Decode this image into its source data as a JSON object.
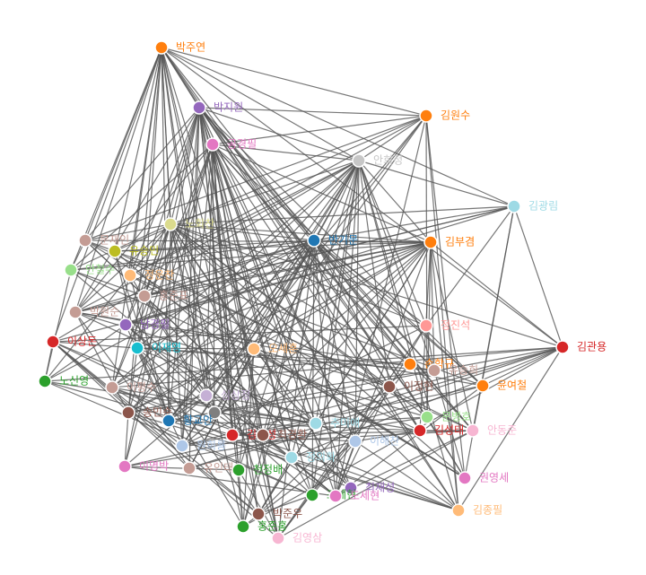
{
  "nodes": [
    {
      "label": "박주연",
      "color": "#ff7f0e"
    },
    {
      "label": "박지원",
      "color": "#9467bd"
    },
    {
      "label": "공경필",
      "color": "#e377c2"
    },
    {
      "label": "김원수",
      "color": "#ff7f0e"
    },
    {
      "label": "안희정",
      "color": "#c7c7c7"
    },
    {
      "label": "김광림",
      "color": "#9edae5"
    },
    {
      "label": "문재인",
      "color": "#c49c94"
    },
    {
      "label": "노회찬",
      "color": "#dbdb8d"
    },
    {
      "label": "반기문",
      "color": "#1f77b4"
    },
    {
      "label": "김부겸",
      "color": "#ff7f0e"
    },
    {
      "label": "유승민",
      "color": "#bcbd22"
    },
    {
      "label": "안철수",
      "color": "#98df8a"
    },
    {
      "label": "정운찬",
      "color": "#ffbb78"
    },
    {
      "label": "홍준표",
      "color": "#c49c94"
    },
    {
      "label": "박원순",
      "color": "#c49c94"
    },
    {
      "label": "남경필",
      "color": "#9467bd"
    },
    {
      "label": "정진석",
      "color": "#ff9896"
    },
    {
      "label": "이상돈",
      "color": "#d62728"
    },
    {
      "label": "이재명",
      "color": "#17becf"
    },
    {
      "label": "김관용",
      "color": "#d62728"
    },
    {
      "label": "오세훈",
      "color": "#ffbb78"
    },
    {
      "label": "손학규",
      "color": "#ff7f0e"
    },
    {
      "label": "유승희",
      "color": "#c49c94"
    },
    {
      "label": "노신영",
      "color": "#2ca02c"
    },
    {
      "label": "이평수",
      "color": "#c49c94"
    },
    {
      "label": "이정현",
      "color": "#8c564b"
    },
    {
      "label": "윤여철",
      "color": "#ff7f0e"
    },
    {
      "label": "심상정",
      "color": "#c5b0d5"
    },
    {
      "label": "송민순",
      "color": "#8c564b"
    },
    {
      "label": "정동영",
      "color": "#7f7f7f"
    },
    {
      "label": "황교안",
      "color": "#1f77b4"
    },
    {
      "label": "문병호",
      "color": "#98df8a"
    },
    {
      "label": "김성태",
      "color": "#d62728"
    },
    {
      "label": "안동준",
      "color": "#f7b6d2"
    },
    {
      "label": "추미애",
      "color": "#9edae5"
    },
    {
      "label": "김무성",
      "color": "#d62728"
    },
    {
      "label": "최경환",
      "color": "#8c564b"
    },
    {
      "label": "이해찬",
      "color": "#aec7e8"
    },
    {
      "label": "원희룡",
      "color": "#aec7e8"
    },
    {
      "label": "이명박",
      "color": "#e377c2"
    },
    {
      "label": "유인태",
      "color": "#c49c94"
    },
    {
      "label": "천정배",
      "color": "#2ca02c"
    },
    {
      "label": "정의화",
      "color": "#9edae5"
    },
    {
      "label": "권영세",
      "color": "#e377c2"
    },
    {
      "label": "최재성",
      "color": "#9467bd"
    },
    {
      "label": "조세현",
      "color": "#2ca02c"
    },
    {
      "label": "도세현",
      "color": "#e377c2"
    },
    {
      "label": "박준우",
      "color": "#8c564b"
    },
    {
      "label": "김종필",
      "color": "#ffbb78"
    },
    {
      "label": "홍준홍",
      "color": "#2ca02c"
    },
    {
      "label": "김영삼",
      "color": "#f7b6d2"
    }
  ]
}
